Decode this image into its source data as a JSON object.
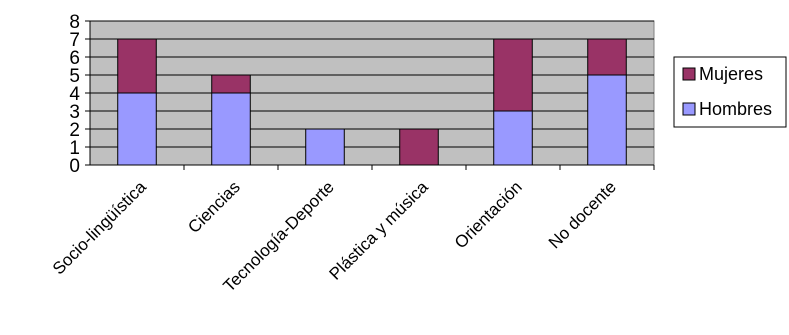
{
  "chart_data": {
    "type": "bar",
    "stacked": true,
    "categories": [
      "Socio-lingüística",
      "Ciencias",
      "Tecnología-Deporte",
      "Plástica y música",
      "Orientación",
      "No docente"
    ],
    "series": [
      {
        "name": "Hombres",
        "values": [
          4,
          4,
          2,
          0,
          3,
          5
        ],
        "color": "#9999ff"
      },
      {
        "name": "Mujeres",
        "values": [
          3,
          1,
          0,
          2,
          4,
          2
        ],
        "color": "#993366"
      }
    ],
    "ylim": [
      0,
      8
    ],
    "yticks": [
      0,
      1,
      2,
      3,
      4,
      5,
      6,
      7,
      8
    ],
    "grid": true,
    "plot_background": "#c0c0c0",
    "legend_position": "right",
    "legend_order": [
      "Mujeres",
      "Hombres"
    ]
  }
}
